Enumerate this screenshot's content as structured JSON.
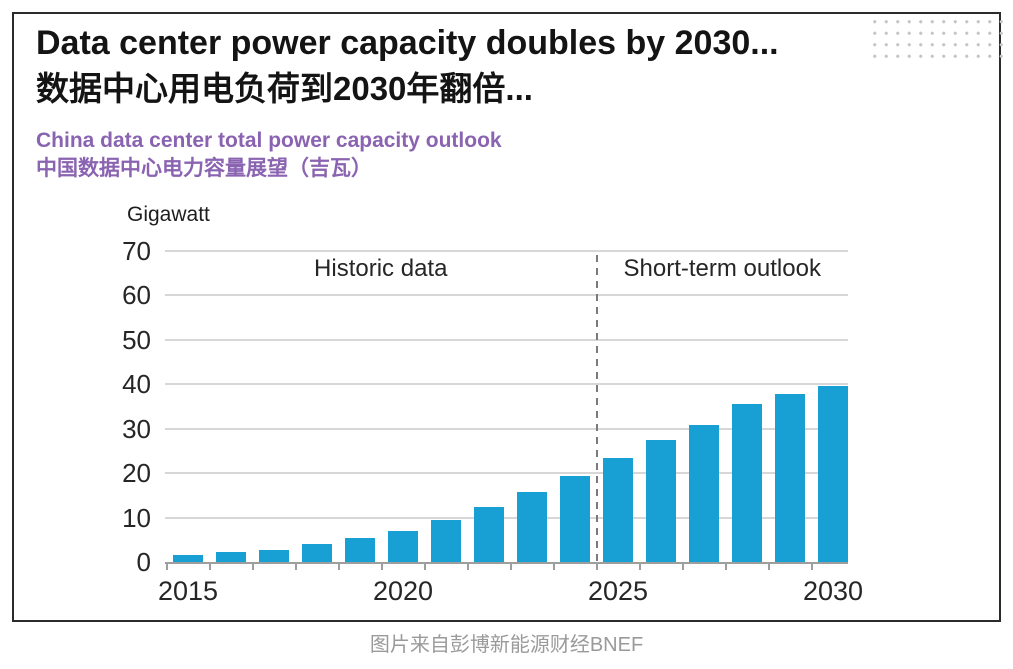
{
  "header": {
    "title_en": "Data center power capacity doubles by 2030...",
    "title_zh": "数据中心用电负荷到2030年翻倍...",
    "subtitle_en": "China data center total power capacity outlook",
    "subtitle_zh": "中国数据中心电力容量展望（吉瓦）"
  },
  "chart_data": {
    "type": "bar",
    "title": "China data center total power capacity outlook",
    "title_zh": "中国数据中心电力容量展望（吉瓦）",
    "ylabel": "Gigawatt",
    "xlabel": "",
    "categories": [
      "2015",
      "2016",
      "2017",
      "2018",
      "2019",
      "2020",
      "2021",
      "2022",
      "2023",
      "2024",
      "2025",
      "2026",
      "2027",
      "2028",
      "2029",
      "2030"
    ],
    "values": [
      1.6,
      2.2,
      2.8,
      4.0,
      5.5,
      7.0,
      9.4,
      12.4,
      15.7,
      19.4,
      23.5,
      27.4,
      30.8,
      35.5,
      37.9,
      39.7
    ],
    "ylim": [
      0,
      70
    ],
    "y_ticks": [
      0,
      10,
      20,
      30,
      40,
      50,
      60,
      70
    ],
    "x_tick_labels": [
      "2015",
      "2020",
      "2025",
      "2030"
    ],
    "x_tick_indices": [
      0,
      5,
      10,
      15
    ],
    "grid": true,
    "legend": null,
    "annotations": [
      {
        "text": "Historic data",
        "region": "left"
      },
      {
        "text": "Short-term outlook",
        "region": "right"
      }
    ],
    "divider": {
      "style": "dashed",
      "between_categories": [
        "2024",
        "2025"
      ],
      "after_index": 9
    }
  },
  "footer": {
    "caption": "图片来自彭博新能源财经BNEF"
  },
  "colors": {
    "bar-blue": "#189fd4",
    "accent-purple": "#8a63b1",
    "title-black": "#141414",
    "border-dark": "#2b2b2b",
    "grid-gray": "#d7d7d7",
    "axis-gray": "#9e9e9e",
    "divider-gray": "#7a7a7a",
    "footer-gray": "#9a9a9a",
    "dot-gray": "#c6c6c6"
  }
}
